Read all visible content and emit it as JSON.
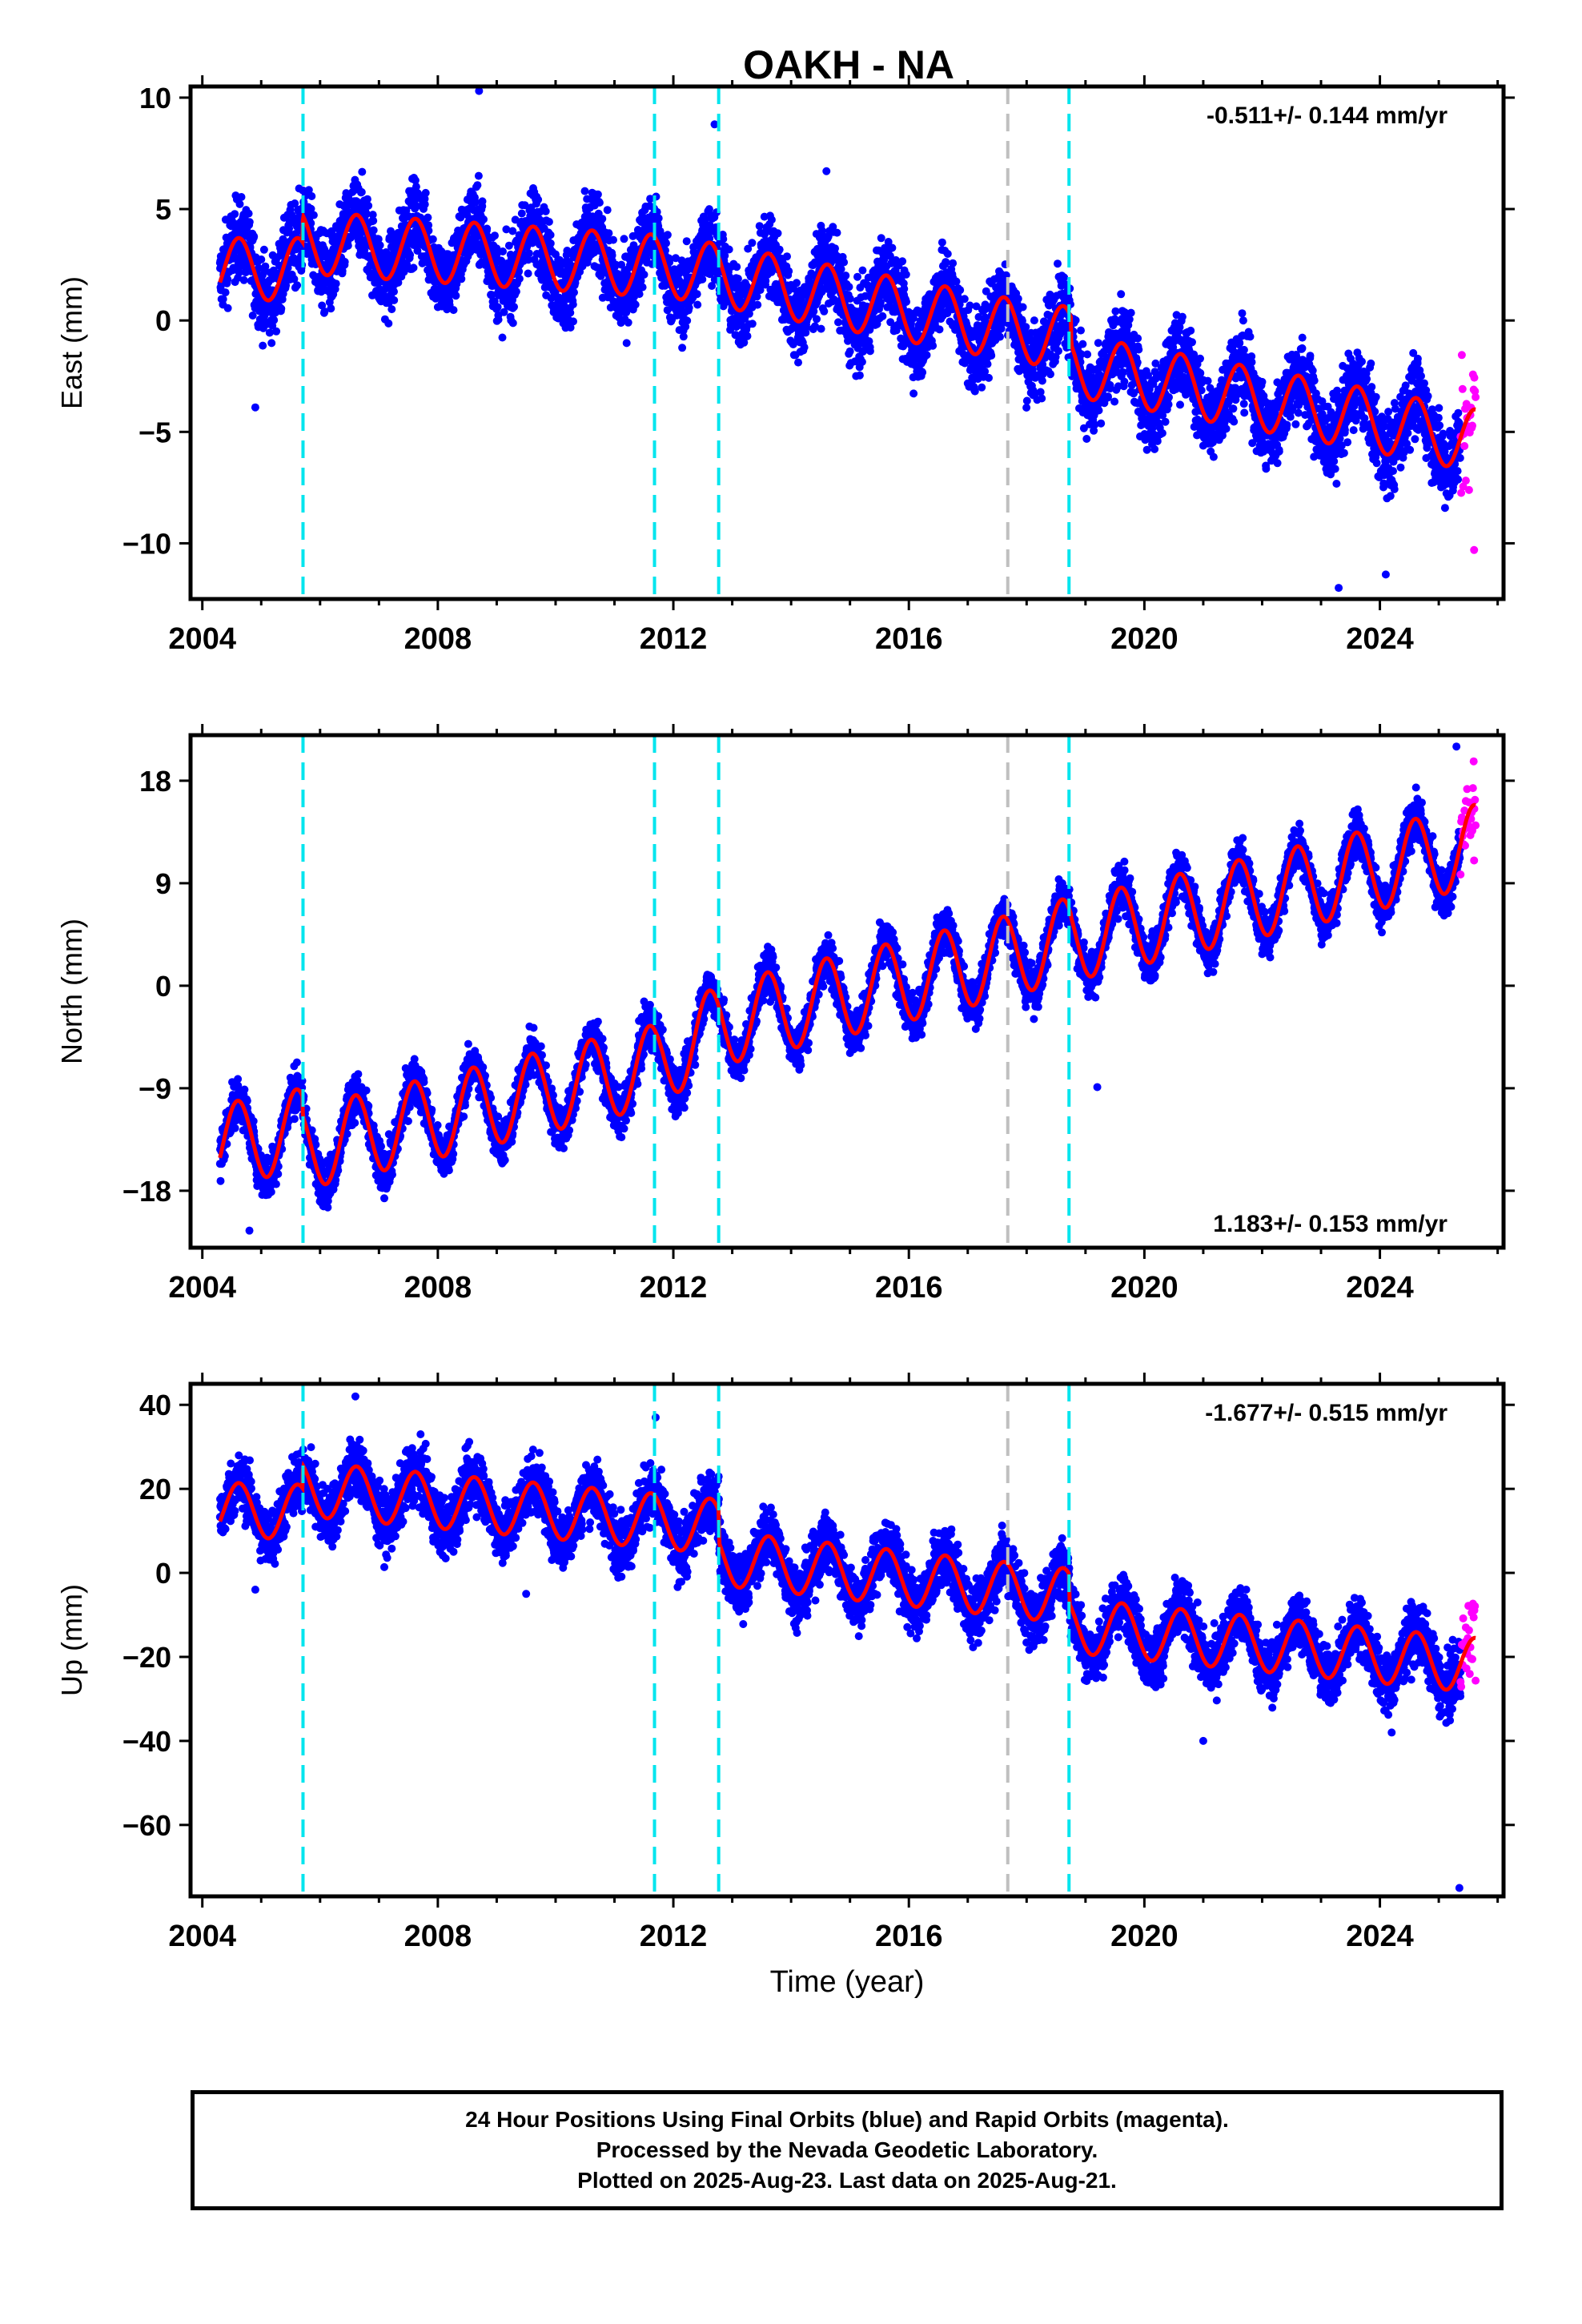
{
  "title": "OAKH - NA",
  "xlabel": "Time (year)",
  "colors": {
    "final_orbits": "#0000ff",
    "rapid_orbits": "#ff00ff",
    "model_fit": "#ff0000",
    "equipment_change_line": "#00e5ee",
    "other_event_line": "#c0c0c0",
    "frame": "#000000"
  },
  "caption": [
    "24 Hour Positions Using Final Orbits (blue) and Rapid Orbits (magenta).",
    "Processed by the Nevada Geodetic Laboratory.",
    "Plotted on 2025-Aug-23. Last data on 2025-Aug-21."
  ],
  "chart_data": [
    {
      "type": "scatter",
      "component": "East",
      "ylabel": "East (mm)",
      "rate_label": "-0.511+/- 0.144 mm/yr",
      "rate_label_position": "top-right",
      "xlim": [
        2003.8,
        2026.1
      ],
      "ylim": [
        -12.5,
        10.5
      ],
      "xticks": [
        2004,
        2008,
        2012,
        2016,
        2020,
        2024
      ],
      "yticks": [
        10,
        5,
        0,
        -5,
        -10
      ],
      "data_start": 2004.3,
      "data_end": 2025.63,
      "rapid_start": 2025.37,
      "trend_anchor": [
        [
          2004.3,
          2.3
        ],
        [
          2005.7,
          2.3
        ],
        [
          2005.71,
          3.5
        ],
        [
          2012.0,
          2.4
        ],
        [
          2017.7,
          -0.4
        ],
        [
          2018.75,
          -0.8
        ],
        [
          2018.76,
          -2.0
        ],
        [
          2023.5,
          -4.3
        ],
        [
          2025.63,
          -5.4
        ]
      ],
      "annual_amplitude": 1.4,
      "annual_phase_peak": 0.62,
      "daily_scatter": 1.25,
      "outliers": [
        [
          2004.9,
          -3.9
        ],
        [
          2008.7,
          10.3
        ],
        [
          2012.7,
          8.8
        ],
        [
          2014.6,
          6.7
        ],
        [
          2023.3,
          -12.0
        ],
        [
          2024.1,
          -11.4
        ],
        [
          2025.6,
          -10.3
        ]
      ],
      "vertical_lines": [
        {
          "x": 2005.71,
          "kind": "equipment"
        },
        {
          "x": 2011.68,
          "kind": "equipment"
        },
        {
          "x": 2012.77,
          "kind": "equipment"
        },
        {
          "x": 2017.68,
          "kind": "other"
        },
        {
          "x": 2018.72,
          "kind": "equipment"
        }
      ]
    },
    {
      "type": "scatter",
      "component": "North",
      "ylabel": "North (mm)",
      "rate_label": "1.183+/- 0.153 mm/yr",
      "rate_label_position": "bottom-right",
      "xlim": [
        2003.8,
        2026.1
      ],
      "ylim": [
        -23,
        22
      ],
      "xticks": [
        2004,
        2008,
        2012,
        2016,
        2020,
        2024
      ],
      "yticks": [
        18,
        9,
        0,
        -9,
        -18
      ],
      "data_start": 2004.3,
      "data_end": 2025.63,
      "rapid_start": 2025.37,
      "trend_anchor": [
        [
          2004.3,
          -14.0
        ],
        [
          2005.7,
          -12.6
        ],
        [
          2005.71,
          -14.3
        ],
        [
          2011.7,
          -7.0
        ],
        [
          2012.8,
          -3.4
        ],
        [
          2017.7,
          2.6
        ],
        [
          2018.75,
          4.2
        ],
        [
          2018.76,
          4.0
        ],
        [
          2025.63,
          12.3
        ]
      ],
      "annual_amplitude": 3.6,
      "annual_phase_peak": 0.6,
      "daily_scatter": 1.4,
      "outliers": [
        [
          2004.8,
          -21.5
        ],
        [
          2019.2,
          -8.9
        ],
        [
          2025.3,
          21.0
        ],
        [
          2025.6,
          11.0
        ]
      ],
      "vertical_lines": [
        {
          "x": 2005.71,
          "kind": "equipment"
        },
        {
          "x": 2011.68,
          "kind": "equipment"
        },
        {
          "x": 2012.77,
          "kind": "equipment"
        },
        {
          "x": 2017.68,
          "kind": "other"
        },
        {
          "x": 2018.72,
          "kind": "equipment"
        }
      ]
    },
    {
      "type": "scatter",
      "component": "Up",
      "ylabel": "Up (mm)",
      "rate_label": "-1.677+/- 0.515 mm/yr",
      "rate_label_position": "top-right",
      "xlim": [
        2003.8,
        2026.1
      ],
      "ylim": [
        -77,
        45
      ],
      "xticks": [
        2004,
        2008,
        2012,
        2016,
        2020,
        2024
      ],
      "yticks": [
        40,
        20,
        0,
        -20,
        -40,
        -60
      ],
      "data_start": 2004.3,
      "data_end": 2025.63,
      "rapid_start": 2025.37,
      "trend_anchor": [
        [
          2004.3,
          15.0
        ],
        [
          2005.7,
          14.5
        ],
        [
          2005.71,
          20.0
        ],
        [
          2012.77,
          11.0
        ],
        [
          2012.78,
          3.5
        ],
        [
          2017.7,
          -4.0
        ],
        [
          2018.72,
          -5.5
        ],
        [
          2018.73,
          -12.5
        ],
        [
          2025.63,
          -22.0
        ]
      ],
      "annual_amplitude": 6.5,
      "annual_phase_peak": 0.62,
      "daily_scatter": 5.0,
      "outliers": [
        [
          2004.9,
          -4.0
        ],
        [
          2006.6,
          42.0
        ],
        [
          2009.5,
          -5.0
        ],
        [
          2011.7,
          37.0
        ],
        [
          2021.0,
          -40.0
        ],
        [
          2024.2,
          -38.0
        ],
        [
          2025.35,
          -75.0
        ]
      ],
      "vertical_lines": [
        {
          "x": 2005.71,
          "kind": "equipment"
        },
        {
          "x": 2011.68,
          "kind": "equipment"
        },
        {
          "x": 2012.77,
          "kind": "equipment"
        },
        {
          "x": 2017.68,
          "kind": "other"
        },
        {
          "x": 2018.72,
          "kind": "equipment"
        }
      ]
    }
  ]
}
